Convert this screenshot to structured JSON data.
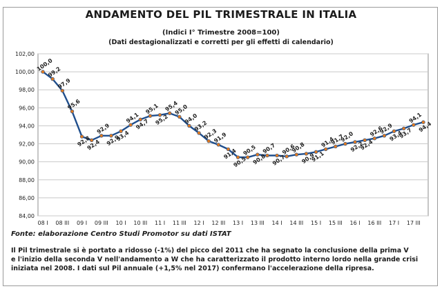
{
  "header": {
    "title": "ANDAMENTO DEL PIL TRIMESTRALE IN ITALIA",
    "subtitle": "(Indici I° Trimestre 2008=100)",
    "subtitle2": "(Dati destagionalizzati e corretti per gli effetti di calendario)"
  },
  "footer": {
    "source": "Fonte: elaborazione Centro Studi Promotor su dati ISTAT",
    "note_lines": [
      "Il Pil trimestrale si è portato a ridosso (-1%) del picco del 2011 che ha segnato la conclusione della prima V",
      "e l'inizio della seconda V nell'andamento a W che ha caratterizzato il prodotto interno lordo nella grande crisi",
      "iniziata nel 2008. I dati sul Pil annuale (+1,5% nel 2017) confermano l'accelerazione della ripresa."
    ]
  },
  "chart_data": {
    "type": "line",
    "title": "ANDAMENTO DEL PIL TRIMESTRALE IN ITALIA",
    "ylim": [
      84,
      102
    ],
    "yticks": [
      "84,00",
      "86,00",
      "88,00",
      "90,00",
      "92,00",
      "94,00",
      "96,00",
      "98,00",
      "100,00",
      "102,00"
    ],
    "ytick_values": [
      84,
      86,
      88,
      90,
      92,
      94,
      96,
      98,
      100,
      102
    ],
    "grid": true,
    "legend": "none",
    "colors": {
      "line": "#1f4e8c",
      "marker": "#e07b22",
      "grid": "#c8c8c8"
    },
    "x_tick_labels": [
      "08 I",
      "08 III",
      "09 I",
      "09 III",
      "10 I",
      "10 III",
      "11 I",
      "11 III",
      "12 I",
      "12 III",
      "13 I",
      "13 III",
      "14 I",
      "14 III",
      "15 I",
      "15 III",
      "16 I",
      "16 III",
      "17 I",
      "17 III"
    ],
    "quarters": [
      "08 I",
      "08 II",
      "08 III",
      "08 IV",
      "09 I",
      "09 II",
      "09 III",
      "09 IV",
      "10 I",
      "10 II",
      "10 III",
      "10 IV",
      "11 I",
      "11 II",
      "11 III",
      "11 IV",
      "12 I",
      "12 II",
      "12 III",
      "12 IV",
      "13 I",
      "13 II",
      "13 III",
      "13 IV",
      "14 I",
      "14 II",
      "14 III",
      "14 IV",
      "15 I",
      "15 II",
      "15 III",
      "15 IV",
      "16 I",
      "16 II",
      "16 III",
      "16 IV",
      "17 I",
      "17 II",
      "17 III",
      "17 IV"
    ],
    "values": [
      100.0,
      99.2,
      97.9,
      95.6,
      92.8,
      92.4,
      92.9,
      92.9,
      93.4,
      94.1,
      94.7,
      95.1,
      95.2,
      95.4,
      95.0,
      94.0,
      93.2,
      92.3,
      91.9,
      91.4,
      90.5,
      90.5,
      90.8,
      90.7,
      90.7,
      90.6,
      90.8,
      90.9,
      91.1,
      91.4,
      91.7,
      92.0,
      92.2,
      92.4,
      92.6,
      92.9,
      93.4,
      93.7,
      94.1,
      94.4
    ],
    "data_labels": [
      "100,0",
      "99,2",
      "97,9",
      "95,6",
      "92,8",
      "92,4",
      "92,9",
      "92,9",
      "93,4",
      "94,1",
      "94,7",
      "95,1",
      "95,2",
      "95,4",
      "95,0",
      "94,0",
      "93,2",
      "92,3",
      "91,9",
      "91,4",
      "90,5",
      "90,5",
      "90,8",
      "90,7",
      "90,7",
      "90,6",
      "90,8",
      "90,9",
      "91,1",
      "91,4",
      "91,7",
      "92,0",
      "92,2",
      "92,4",
      "92,6",
      "92,9",
      "93,4",
      "93,7",
      "94,1",
      "94,4"
    ],
    "label_side": [
      "above",
      "above",
      "above",
      "above",
      "below",
      "below",
      "above",
      "below",
      "below",
      "above",
      "below",
      "above",
      "below",
      "above",
      "above",
      "above",
      "above",
      "above",
      "above",
      "below",
      "below",
      "above",
      "below",
      "above",
      "below",
      "above",
      "above",
      "below",
      "below",
      "above",
      "above",
      "above",
      "below",
      "below",
      "above",
      "above",
      "below",
      "below",
      "above",
      "below"
    ]
  }
}
